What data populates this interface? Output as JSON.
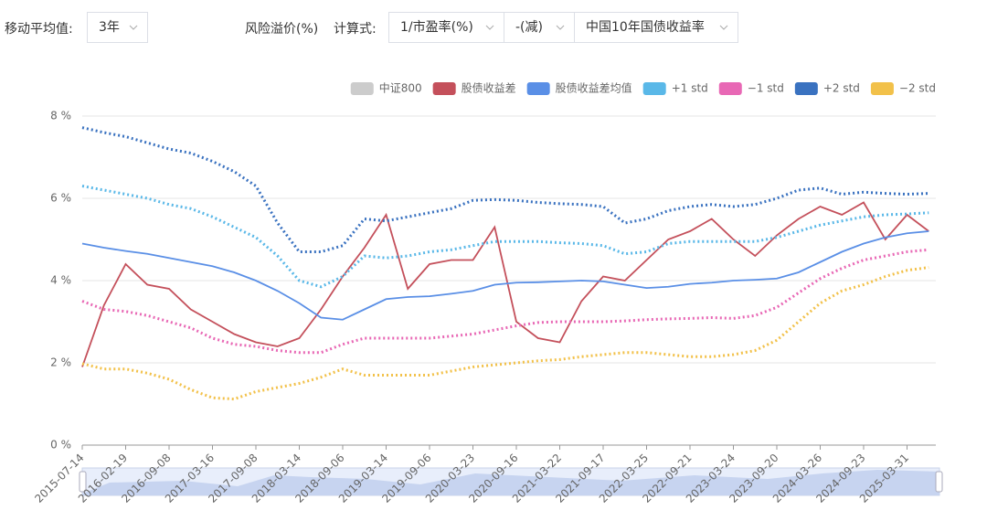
{
  "controls": {
    "ma_label": "移动平均值:",
    "ma_value": "3年",
    "premium_label": "风险溢价(%)",
    "formula_label": "计算式:",
    "formula_a": "1/市盈率(%)",
    "formula_op": "-(减)",
    "formula_b": "中国10年国债收益率"
  },
  "chart_data": {
    "type": "line",
    "categories": [
      "2015-07-14",
      null,
      "2016-02-19",
      null,
      "2016-09-08",
      null,
      "2017-03-16",
      null,
      "2017-09-08",
      null,
      "2018-03-14",
      null,
      "2018-09-06",
      null,
      "2019-03-14",
      null,
      "2019-09-06",
      null,
      "2020-03-23",
      null,
      "2020-09-16",
      null,
      "2021-03-22",
      null,
      "2021-09-17",
      null,
      "2022-03-25",
      null,
      "2022-09-21",
      null,
      "2023-03-24",
      null,
      "2023-09-20",
      null,
      "2024-03-26",
      null,
      "2024-09-23",
      null,
      "2025-03-31",
      null
    ],
    "series": [
      {
        "name": "中证800",
        "color": "#cccccc",
        "visible": false
      },
      {
        "name": "股债收益差",
        "color": "#c4505b",
        "dash": "solid",
        "values": [
          1.9,
          3.4,
          4.4,
          3.9,
          3.8,
          3.3,
          3.0,
          2.7,
          2.5,
          2.4,
          2.6,
          3.3,
          4.1,
          4.8,
          5.6,
          3.8,
          4.4,
          4.5,
          4.5,
          5.3,
          3.0,
          2.6,
          2.5,
          3.5,
          4.1,
          4.0,
          4.5,
          5.0,
          5.2,
          5.5,
          5.0,
          4.6,
          5.1,
          5.5,
          5.8,
          5.6,
          5.9,
          5.0,
          5.6,
          5.2
        ]
      },
      {
        "name": "股债收益差均值",
        "color": "#5a8fe6",
        "dash": "solid",
        "values": [
          4.9,
          4.8,
          4.72,
          4.65,
          4.55,
          4.45,
          4.35,
          4.2,
          4.0,
          3.75,
          3.45,
          3.1,
          3.05,
          3.3,
          3.55,
          3.6,
          3.62,
          3.68,
          3.75,
          3.9,
          3.95,
          3.96,
          3.98,
          4.0,
          3.98,
          3.9,
          3.82,
          3.85,
          3.92,
          3.95,
          4.0,
          4.02,
          4.05,
          4.2,
          4.45,
          4.7,
          4.9,
          5.05,
          5.15,
          5.2
        ]
      },
      {
        "name": "+1 std",
        "color": "#5ab8e8",
        "dash": "dotted",
        "values": [
          6.3,
          6.2,
          6.1,
          6.0,
          5.85,
          5.75,
          5.55,
          5.3,
          5.05,
          4.6,
          4.0,
          3.85,
          4.1,
          4.6,
          4.55,
          4.6,
          4.7,
          4.75,
          4.85,
          4.95,
          4.95,
          4.95,
          4.92,
          4.9,
          4.85,
          4.65,
          4.7,
          4.9,
          4.95,
          4.95,
          4.95,
          4.95,
          5.05,
          5.2,
          5.35,
          5.45,
          5.55,
          5.6,
          5.62,
          5.65
        ]
      },
      {
        "name": "−1 std",
        "color": "#e868b5",
        "dash": "dotted",
        "values": [
          3.5,
          3.3,
          3.25,
          3.15,
          3.0,
          2.85,
          2.6,
          2.45,
          2.4,
          2.3,
          2.25,
          2.25,
          2.45,
          2.6,
          2.6,
          2.6,
          2.6,
          2.65,
          2.7,
          2.8,
          2.9,
          2.98,
          3.0,
          3.0,
          3.0,
          3.02,
          3.05,
          3.07,
          3.08,
          3.1,
          3.08,
          3.15,
          3.35,
          3.7,
          4.05,
          4.3,
          4.5,
          4.6,
          4.7,
          4.75
        ]
      },
      {
        "name": "+2 std",
        "color": "#3a72c0",
        "dash": "dotted",
        "values": [
          7.72,
          7.6,
          7.5,
          7.35,
          7.2,
          7.1,
          6.9,
          6.65,
          6.3,
          5.4,
          4.7,
          4.7,
          4.85,
          5.5,
          5.45,
          5.55,
          5.65,
          5.75,
          5.95,
          5.97,
          5.95,
          5.9,
          5.87,
          5.85,
          5.8,
          5.4,
          5.5,
          5.7,
          5.8,
          5.85,
          5.8,
          5.85,
          6.0,
          6.2,
          6.25,
          6.1,
          6.15,
          6.12,
          6.1,
          6.12
        ]
      },
      {
        "name": "−2 std",
        "color": "#f2c14a",
        "dash": "dotted",
        "values": [
          1.98,
          1.85,
          1.85,
          1.75,
          1.6,
          1.35,
          1.15,
          1.12,
          1.3,
          1.4,
          1.5,
          1.65,
          1.85,
          1.7,
          1.7,
          1.7,
          1.7,
          1.8,
          1.9,
          1.95,
          2.0,
          2.05,
          2.08,
          2.15,
          2.2,
          2.25,
          2.25,
          2.2,
          2.15,
          2.15,
          2.2,
          2.3,
          2.55,
          3.0,
          3.45,
          3.75,
          3.9,
          4.1,
          4.25,
          4.32
        ]
      }
    ],
    "ylim": [
      0,
      8
    ],
    "yticks": [
      {
        "value": 0,
        "label": "0 %"
      },
      {
        "value": 2,
        "label": "2 %"
      },
      {
        "value": 4,
        "label": "4 %"
      },
      {
        "value": 6,
        "label": "6 %"
      },
      {
        "value": 8,
        "label": "8 %"
      }
    ],
    "grid": true,
    "legend": "top-right"
  }
}
